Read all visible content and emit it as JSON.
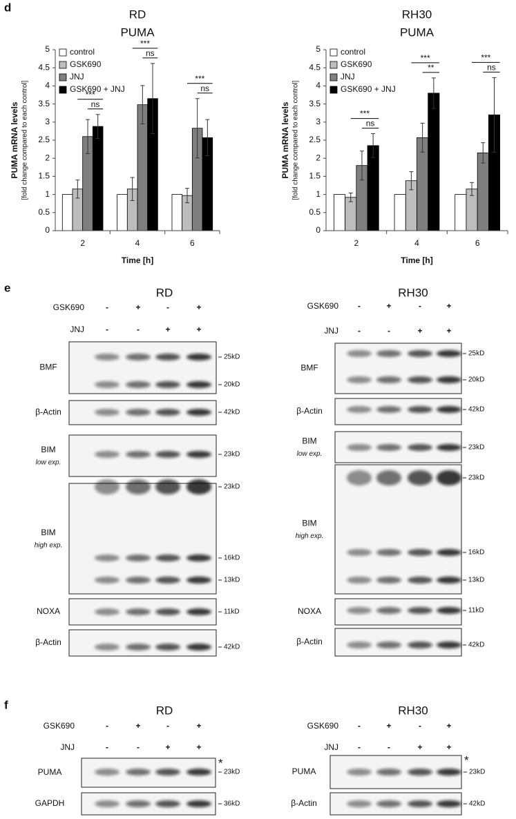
{
  "figure_labels": [
    "d",
    "e",
    "f"
  ],
  "chart_data": [
    {
      "type": "bar",
      "title": "RD",
      "subtitle": "PUMA",
      "x_label": "Time [h]",
      "y_label": [
        "PUMA mRNA levels",
        "[fold change compared to each control]"
      ],
      "categories": [
        "2",
        "4",
        "6"
      ],
      "ylim": [
        0,
        5
      ],
      "yticks": [
        0,
        0.5,
        1,
        1.5,
        2,
        2.5,
        3,
        3.5,
        4,
        4.5,
        5
      ],
      "legend": "upper left",
      "series": [
        {
          "name": "control",
          "color": "#ffffff",
          "values": [
            1,
            1,
            1
          ]
        },
        {
          "name": "GSK690",
          "color": "#bdbdbd",
          "values": [
            1.15,
            1.15,
            0.97
          ],
          "errors": [
            0.25,
            0.32,
            0.2
          ]
        },
        {
          "name": "JNJ",
          "color": "#7f7f7f",
          "values": [
            2.6,
            3.48,
            2.83
          ],
          "errors": [
            0.47,
            0.53,
            0.82
          ]
        },
        {
          "name": "GSK690 + JNJ",
          "color": "#000000",
          "values": [
            2.88,
            3.65,
            2.57
          ],
          "errors": [
            0.33,
            0.97,
            0.5
          ]
        }
      ],
      "significance": [
        [
          "***",
          "ns"
        ],
        [
          "***",
          "ns"
        ],
        [
          "***",
          "ns"
        ]
      ]
    },
    {
      "type": "bar",
      "title": "RH30",
      "subtitle": "PUMA",
      "x_label": "Time [h]",
      "y_label": [
        "PUMA mRNA levels",
        "[fold change compared to each control]"
      ],
      "categories": [
        "2",
        "4",
        "6"
      ],
      "ylim": [
        0,
        5
      ],
      "yticks": [
        0,
        0.5,
        1,
        1.5,
        2,
        2.5,
        3,
        3.5,
        4,
        4.5,
        5
      ],
      "legend": "upper left",
      "series": [
        {
          "name": "control",
          "color": "#ffffff",
          "values": [
            1,
            1,
            1
          ]
        },
        {
          "name": "GSK690",
          "color": "#bdbdbd",
          "values": [
            0.92,
            1.38,
            1.15
          ],
          "errors": [
            0.12,
            0.25,
            0.18
          ]
        },
        {
          "name": "JNJ",
          "color": "#7f7f7f",
          "values": [
            1.8,
            2.57,
            2.15
          ],
          "errors": [
            0.4,
            0.4,
            0.28
          ]
        },
        {
          "name": "GSK690 + JNJ",
          "color": "#000000",
          "values": [
            2.35,
            3.8,
            3.2
          ],
          "errors": [
            0.33,
            0.42,
            1.03
          ]
        }
      ],
      "significance": [
        [
          "***",
          "ns"
        ],
        [
          "***",
          "**"
        ],
        [
          "***",
          "ns"
        ]
      ]
    }
  ],
  "panel_e": {
    "blots": [
      {
        "title": "RD",
        "conditions": [
          {
            "name": "GSK690",
            "signs": [
              "-",
              "+",
              "-",
              "+"
            ]
          },
          {
            "name": "JNJ",
            "signs": [
              "-",
              "-",
              "+",
              "+"
            ]
          }
        ],
        "rows": [
          {
            "label": "BMF",
            "markers": [
              "25kD",
              "20kD"
            ]
          },
          {
            "label": "β-Actin",
            "markers": [
              "42kD"
            ]
          },
          {
            "label": "BIM",
            "note": "low exp.",
            "markers": [
              "23kD"
            ]
          },
          {
            "label": "BIM",
            "note": "high exp.",
            "markers": [
              "23kD",
              "16kD",
              "13kD"
            ]
          },
          {
            "label": "NOXA",
            "markers": [
              "11kD"
            ]
          },
          {
            "label": "β-Actin",
            "markers": [
              "42kD"
            ]
          }
        ]
      },
      {
        "title": "RH30",
        "conditions": [
          {
            "name": "GSK690",
            "signs": [
              "-",
              "+",
              "-",
              "+"
            ]
          },
          {
            "name": "JNJ",
            "signs": [
              "-",
              "-",
              "+",
              "+"
            ]
          }
        ],
        "rows": [
          {
            "label": "BMF",
            "markers": [
              "25kD",
              "20kD"
            ]
          },
          {
            "label": "β-Actin",
            "markers": [
              "42kD"
            ]
          },
          {
            "label": "BIM",
            "note": "low exp.",
            "markers": [
              "23kD"
            ]
          },
          {
            "label": "BIM",
            "note": "high exp.",
            "markers": [
              "23kD",
              "16kD",
              "13kD"
            ]
          },
          {
            "label": "NOXA",
            "markers": [
              "11kD"
            ]
          },
          {
            "label": "β-Actin",
            "markers": [
              "42kD"
            ]
          }
        ]
      }
    ]
  },
  "panel_f": {
    "blots": [
      {
        "title": "RD",
        "conditions": [
          {
            "name": "GSK690",
            "signs": [
              "-",
              "+",
              "-",
              "+"
            ]
          },
          {
            "name": "JNJ",
            "signs": [
              "-",
              "-",
              "+",
              "+"
            ]
          }
        ],
        "rows": [
          {
            "label": "PUMA",
            "markers": [
              "23kD"
            ],
            "annotation": "*"
          },
          {
            "label": "GAPDH",
            "markers": [
              "36kD"
            ]
          }
        ]
      },
      {
        "title": "RH30",
        "conditions": [
          {
            "name": "GSK690",
            "signs": [
              "-",
              "+",
              "-",
              "+"
            ]
          },
          {
            "name": "JNJ",
            "signs": [
              "-",
              "-",
              "+",
              "+"
            ]
          }
        ],
        "rows": [
          {
            "label": "PUMA",
            "markers": [
              "23kD"
            ],
            "annotation": "*"
          },
          {
            "label": "β-Actin",
            "markers": [
              "42kD"
            ]
          }
        ]
      }
    ]
  }
}
